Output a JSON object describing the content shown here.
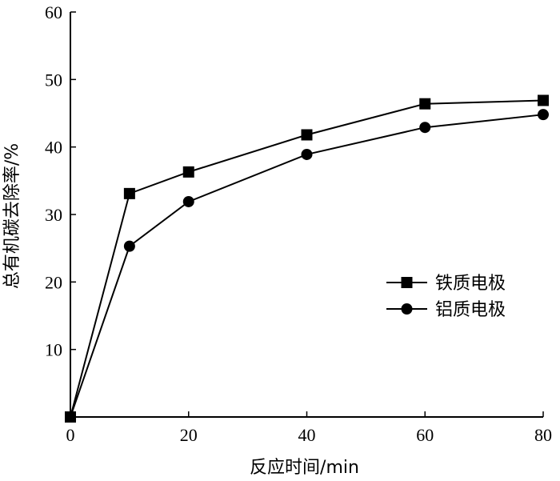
{
  "chart_data": {
    "type": "line",
    "xlabel": "反应时间/min",
    "ylabel": "总有机碳去除率/%",
    "xlim": [
      0,
      80
    ],
    "ylim": [
      0,
      60
    ],
    "xticks": [
      0,
      20,
      40,
      60,
      80
    ],
    "yticks": [
      10,
      20,
      30,
      40,
      50,
      60
    ],
    "grid": false,
    "legend_position": "right",
    "series": [
      {
        "name": "铁质电极",
        "marker": "square",
        "x": [
          0,
          10,
          20,
          40,
          60,
          80
        ],
        "values": [
          0,
          33.1,
          36.3,
          41.8,
          46.4,
          46.9
        ]
      },
      {
        "name": "铝质电极",
        "marker": "circle",
        "x": [
          0,
          10,
          20,
          40,
          60,
          80
        ],
        "values": [
          0,
          25.3,
          31.9,
          38.9,
          42.9,
          44.8
        ]
      }
    ]
  }
}
